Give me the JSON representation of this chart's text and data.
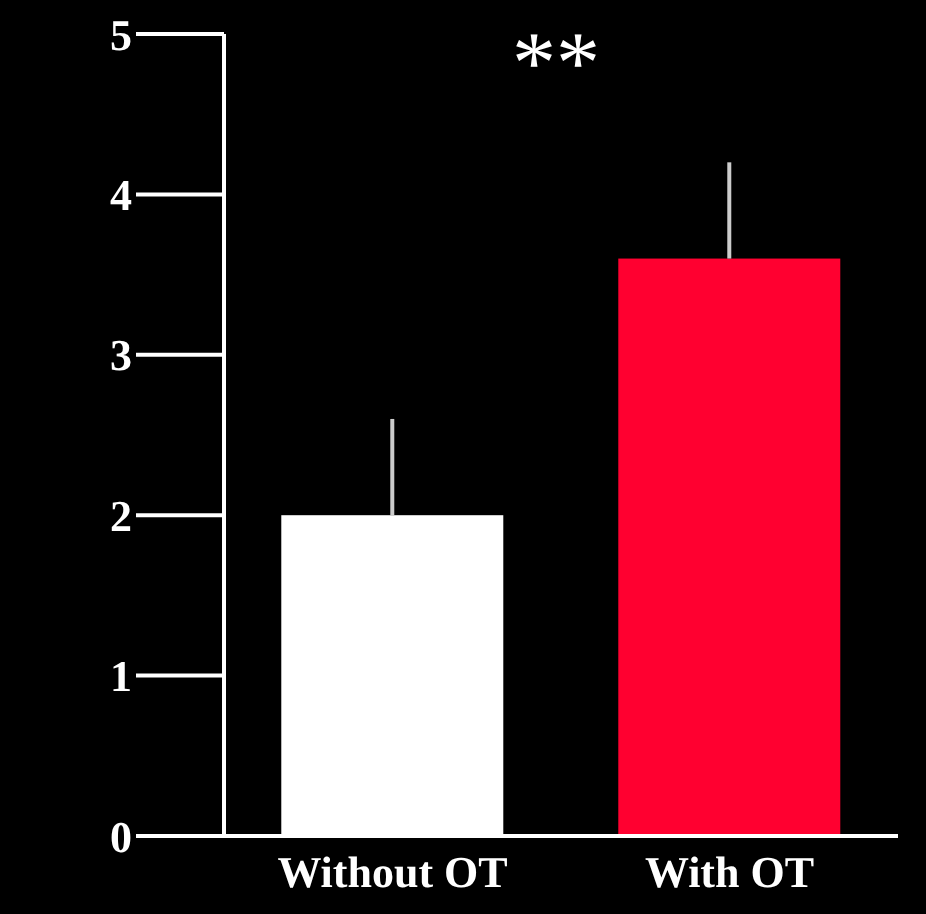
{
  "chart_data": {
    "type": "bar",
    "categories": [
      "Without OT",
      "With OT"
    ],
    "values": [
      2.0,
      3.6
    ],
    "colors": [
      "#ffffff",
      "#ff0030"
    ],
    "errors": [
      [
        2.0,
        2.6
      ],
      [
        3.6,
        4.2
      ]
    ],
    "ylim": [
      0,
      5
    ],
    "yticks": [
      0,
      1,
      2,
      3,
      4,
      5
    ],
    "grid": false,
    "legend": false,
    "annotations": [
      "**"
    ]
  }
}
